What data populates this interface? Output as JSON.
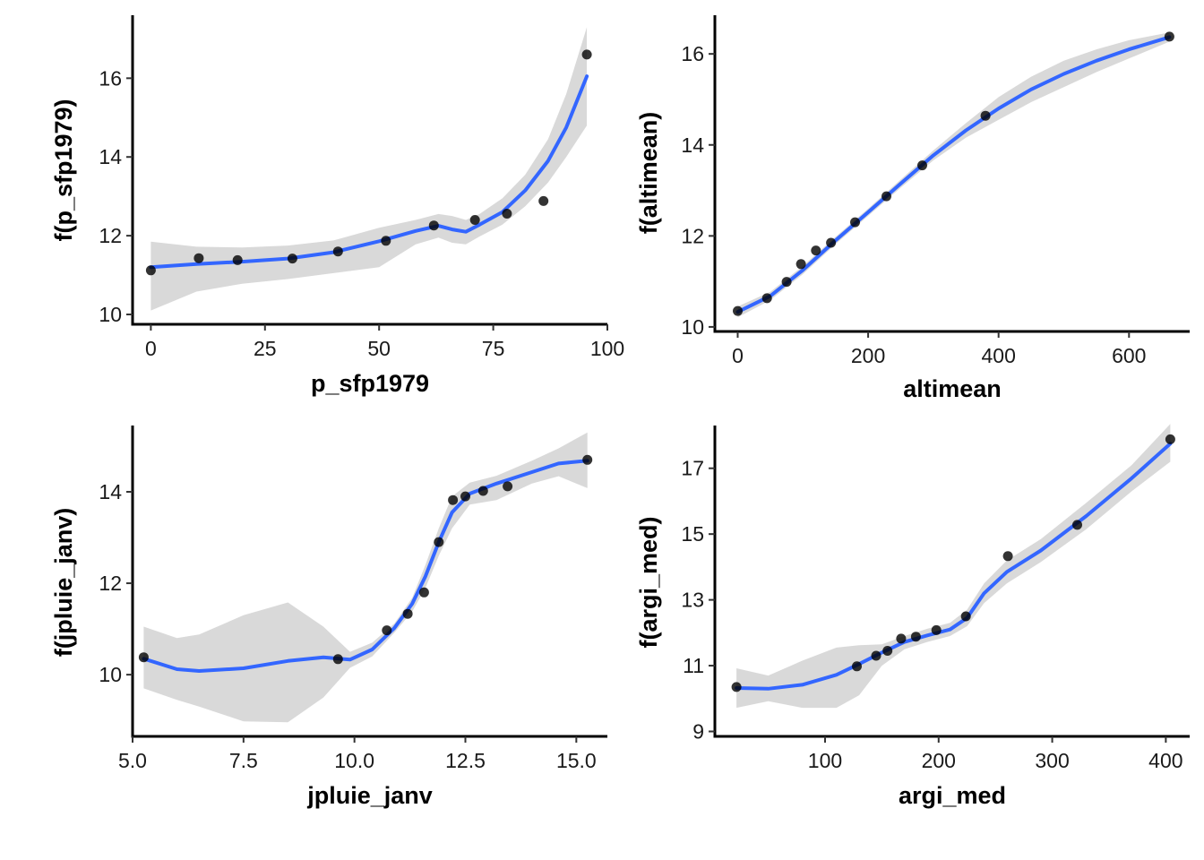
{
  "chart_data": [
    {
      "type": "scatter",
      "xlabel": "p_sfp1979",
      "ylabel": "f(p_sfp1979)",
      "xlim": [
        -4,
        100
      ],
      "ylim": [
        9.75,
        17.6
      ],
      "xticks": [
        0,
        25,
        50,
        75,
        100
      ],
      "xtick_labels": [
        "0",
        "25",
        "50",
        "75",
        "100"
      ],
      "yticks": [
        10,
        12,
        14,
        16
      ],
      "ytick_labels": [
        "10",
        "12",
        "14",
        "16"
      ],
      "grid": false,
      "points": [
        {
          "x": 0,
          "y": 11.12
        },
        {
          "x": 10.5,
          "y": 11.43
        },
        {
          "x": 19,
          "y": 11.38
        },
        {
          "x": 31,
          "y": 11.42
        },
        {
          "x": 41,
          "y": 11.6
        },
        {
          "x": 51.5,
          "y": 11.87
        },
        {
          "x": 62,
          "y": 12.26
        },
        {
          "x": 71,
          "y": 12.4
        },
        {
          "x": 78,
          "y": 12.56
        },
        {
          "x": 86,
          "y": 12.88
        },
        {
          "x": 95.5,
          "y": 16.6
        }
      ],
      "smooth": [
        {
          "x": 0,
          "y": 11.2
        },
        {
          "x": 10,
          "y": 11.28
        },
        {
          "x": 20,
          "y": 11.34
        },
        {
          "x": 30,
          "y": 11.42
        },
        {
          "x": 40,
          "y": 11.58
        },
        {
          "x": 50,
          "y": 11.86
        },
        {
          "x": 58,
          "y": 12.12
        },
        {
          "x": 63,
          "y": 12.25
        },
        {
          "x": 66,
          "y": 12.16
        },
        {
          "x": 69,
          "y": 12.1
        },
        {
          "x": 72,
          "y": 12.28
        },
        {
          "x": 77,
          "y": 12.6
        },
        {
          "x": 82,
          "y": 13.15
        },
        {
          "x": 87,
          "y": 13.9
        },
        {
          "x": 91,
          "y": 14.75
        },
        {
          "x": 95.5,
          "y": 16.05
        }
      ],
      "band_upper": [
        11.85,
        11.72,
        11.7,
        11.75,
        11.88,
        12.2,
        12.4,
        12.55,
        12.5,
        12.4,
        12.55,
        12.95,
        13.55,
        14.45,
        15.6,
        17.3
      ],
      "band_lower": [
        10.1,
        10.58,
        10.78,
        10.9,
        11.05,
        11.2,
        11.78,
        11.95,
        11.82,
        11.78,
        11.98,
        12.28,
        12.75,
        13.35,
        14.0,
        14.8
      ]
    },
    {
      "type": "scatter",
      "xlabel": "altimean",
      "ylabel": "f(altimean)",
      "xlim": [
        -35,
        693
      ],
      "ylim": [
        9.9,
        16.85
      ],
      "xticks": [
        0,
        200,
        400,
        600
      ],
      "xtick_labels": [
        "0",
        "200",
        "400",
        "600"
      ],
      "yticks": [
        10,
        12,
        14,
        16
      ],
      "ytick_labels": [
        "10",
        "12",
        "14",
        "16"
      ],
      "grid": false,
      "points": [
        {
          "x": 0,
          "y": 10.35
        },
        {
          "x": 45,
          "y": 10.63
        },
        {
          "x": 75,
          "y": 10.99
        },
        {
          "x": 97,
          "y": 11.38
        },
        {
          "x": 120,
          "y": 11.68
        },
        {
          "x": 143,
          "y": 11.85
        },
        {
          "x": 180,
          "y": 12.3
        },
        {
          "x": 228,
          "y": 12.87
        },
        {
          "x": 283,
          "y": 13.55
        },
        {
          "x": 380,
          "y": 14.64
        },
        {
          "x": 662,
          "y": 16.38
        }
      ],
      "smooth": [
        {
          "x": 0,
          "y": 10.33
        },
        {
          "x": 50,
          "y": 10.68
        },
        {
          "x": 100,
          "y": 11.25
        },
        {
          "x": 150,
          "y": 11.9
        },
        {
          "x": 200,
          "y": 12.52
        },
        {
          "x": 250,
          "y": 13.15
        },
        {
          "x": 300,
          "y": 13.77
        },
        {
          "x": 350,
          "y": 14.32
        },
        {
          "x": 400,
          "y": 14.8
        },
        {
          "x": 450,
          "y": 15.22
        },
        {
          "x": 500,
          "y": 15.56
        },
        {
          "x": 550,
          "y": 15.85
        },
        {
          "x": 600,
          "y": 16.1
        },
        {
          "x": 662,
          "y": 16.37
        }
      ],
      "band_upper": [
        10.45,
        10.77,
        11.34,
        11.98,
        12.6,
        13.24,
        13.88,
        14.48,
        15.05,
        15.5,
        15.85,
        16.1,
        16.3,
        16.47
      ],
      "band_lower": [
        10.21,
        10.59,
        11.16,
        11.82,
        12.44,
        13.06,
        13.66,
        14.16,
        14.55,
        14.94,
        15.27,
        15.6,
        15.9,
        16.27
      ]
    },
    {
      "type": "scatter",
      "xlabel": "jpluie_janv",
      "ylabel": "f(jpluie_janv)",
      "xlim": [
        5.0,
        15.7
      ],
      "ylim": [
        8.65,
        15.45
      ],
      "xticks": [
        5,
        7.5,
        10,
        12.5,
        15
      ],
      "xtick_labels": [
        "5.0",
        "7.5",
        "10.0",
        "12.5",
        "15.0"
      ],
      "yticks": [
        10,
        12,
        14
      ],
      "ytick_labels": [
        "10",
        "12",
        "14"
      ],
      "grid": false,
      "points": [
        {
          "x": 5.25,
          "y": 10.38
        },
        {
          "x": 9.63,
          "y": 10.34
        },
        {
          "x": 10.73,
          "y": 10.97
        },
        {
          "x": 11.2,
          "y": 11.33
        },
        {
          "x": 11.57,
          "y": 11.8
        },
        {
          "x": 11.9,
          "y": 12.9
        },
        {
          "x": 12.22,
          "y": 13.82
        },
        {
          "x": 12.5,
          "y": 13.9
        },
        {
          "x": 12.9,
          "y": 14.02
        },
        {
          "x": 13.45,
          "y": 14.12
        },
        {
          "x": 15.25,
          "y": 14.7
        }
      ],
      "smooth": [
        {
          "x": 5.25,
          "y": 10.35
        },
        {
          "x": 6.0,
          "y": 10.12
        },
        {
          "x": 6.5,
          "y": 10.08
        },
        {
          "x": 7.5,
          "y": 10.14
        },
        {
          "x": 8.5,
          "y": 10.3
        },
        {
          "x": 9.3,
          "y": 10.38
        },
        {
          "x": 9.9,
          "y": 10.33
        },
        {
          "x": 10.4,
          "y": 10.55
        },
        {
          "x": 10.9,
          "y": 11.02
        },
        {
          "x": 11.3,
          "y": 11.55
        },
        {
          "x": 11.6,
          "y": 12.15
        },
        {
          "x": 11.9,
          "y": 12.9
        },
        {
          "x": 12.2,
          "y": 13.55
        },
        {
          "x": 12.6,
          "y": 13.96
        },
        {
          "x": 13.2,
          "y": 14.18
        },
        {
          "x": 14.0,
          "y": 14.43
        },
        {
          "x": 14.6,
          "y": 14.62
        },
        {
          "x": 15.25,
          "y": 14.68
        }
      ],
      "band_upper": [
        11.05,
        10.8,
        10.88,
        11.3,
        11.58,
        11.05,
        10.5,
        10.7,
        11.12,
        11.68,
        12.4,
        13.2,
        13.9,
        14.2,
        14.35,
        14.68,
        14.95,
        15.3
      ],
      "band_lower": [
        9.7,
        9.45,
        9.3,
        8.98,
        8.96,
        9.5,
        10.15,
        10.4,
        10.92,
        11.38,
        11.9,
        12.6,
        13.2,
        13.72,
        13.82,
        14.18,
        14.34,
        14.08
      ]
    },
    {
      "type": "scatter",
      "xlabel": "argi_med",
      "ylabel": "f(argi_med)",
      "xlim": [
        3,
        421
      ],
      "ylim": [
        8.85,
        18.3
      ],
      "xticks": [
        100,
        200,
        300,
        400
      ],
      "xtick_labels": [
        "100",
        "200",
        "300",
        "400"
      ],
      "yticks": [
        9,
        11,
        13,
        15,
        17
      ],
      "ytick_labels": [
        "9",
        "11",
        "13",
        "15",
        "17"
      ],
      "grid": false,
      "points": [
        {
          "x": 22,
          "y": 10.35
        },
        {
          "x": 128,
          "y": 10.98
        },
        {
          "x": 145,
          "y": 11.3
        },
        {
          "x": 155,
          "y": 11.45
        },
        {
          "x": 167,
          "y": 11.82
        },
        {
          "x": 180,
          "y": 11.88
        },
        {
          "x": 198,
          "y": 12.08
        },
        {
          "x": 224,
          "y": 12.5
        },
        {
          "x": 261,
          "y": 14.33
        },
        {
          "x": 322,
          "y": 15.28
        },
        {
          "x": 404,
          "y": 17.88
        }
      ],
      "smooth": [
        {
          "x": 22,
          "y": 10.32
        },
        {
          "x": 50,
          "y": 10.3
        },
        {
          "x": 80,
          "y": 10.42
        },
        {
          "x": 110,
          "y": 10.72
        },
        {
          "x": 130,
          "y": 11.05
        },
        {
          "x": 150,
          "y": 11.4
        },
        {
          "x": 170,
          "y": 11.72
        },
        {
          "x": 190,
          "y": 11.92
        },
        {
          "x": 210,
          "y": 12.1
        },
        {
          "x": 225,
          "y": 12.45
        },
        {
          "x": 240,
          "y": 13.2
        },
        {
          "x": 260,
          "y": 13.85
        },
        {
          "x": 290,
          "y": 14.5
        },
        {
          "x": 330,
          "y": 15.55
        },
        {
          "x": 370,
          "y": 16.7
        },
        {
          "x": 404,
          "y": 17.75
        }
      ],
      "band_upper": [
        10.92,
        10.7,
        11.15,
        11.55,
        11.62,
        11.65,
        11.9,
        12.12,
        12.3,
        12.7,
        13.5,
        14.2,
        14.85,
        15.95,
        17.1,
        18.35
      ],
      "band_lower": [
        9.72,
        9.92,
        9.72,
        9.72,
        10.1,
        11.0,
        11.5,
        11.72,
        11.9,
        12.2,
        12.9,
        13.5,
        14.15,
        15.15,
        16.3,
        17.2
      ]
    }
  ]
}
